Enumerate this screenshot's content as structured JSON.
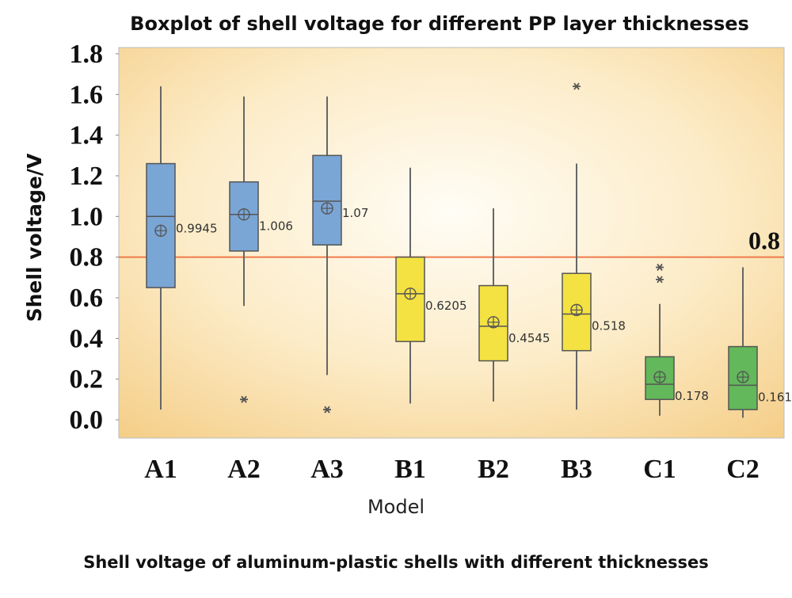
{
  "chart_data": {
    "type": "boxplot",
    "title": "Boxplot of shell voltage for different PP layer thicknesses",
    "xlabel": "Model",
    "ylabel": "Shell voltage/V",
    "caption": "Shell voltage of aluminum-plastic shells with different thicknesses",
    "ylim": [
      0,
      1.8
    ],
    "yticks": [
      "0.0",
      "0.2",
      "0.4",
      "0.6",
      "0.8",
      "1.0",
      "1.2",
      "1.4",
      "1.6",
      "1.8"
    ],
    "grid": false,
    "reference_line": {
      "value": 0.8,
      "label": "0.8",
      "color": "#f07a4a"
    },
    "categories": [
      "A1",
      "A2",
      "A3",
      "B1",
      "B2",
      "B3",
      "C1",
      "C2"
    ],
    "boxes": [
      {
        "name": "A1",
        "whisker_low": 0.05,
        "q1": 0.65,
        "median": 1.0,
        "q3": 1.26,
        "whisker_high": 1.64,
        "mean": 0.93,
        "label": "0.9945",
        "outliers": [],
        "color": "#7aa6d6"
      },
      {
        "name": "A2",
        "whisker_low": 0.56,
        "q1": 0.83,
        "median": 1.01,
        "q3": 1.17,
        "whisker_high": 1.59,
        "mean": 1.01,
        "label": "1.006",
        "outliers": [
          0.1
        ],
        "color": "#7aa6d6"
      },
      {
        "name": "A3",
        "whisker_low": 0.22,
        "q1": 0.86,
        "median": 1.075,
        "q3": 1.3,
        "whisker_high": 1.59,
        "mean": 1.04,
        "label": "1.07",
        "outliers": [
          0.05
        ],
        "color": "#7aa6d6"
      },
      {
        "name": "B1",
        "whisker_low": 0.08,
        "q1": 0.385,
        "median": 0.62,
        "q3": 0.8,
        "whisker_high": 1.24,
        "mean": 0.62,
        "label": "0.6205",
        "outliers": [],
        "color": "#f4e242"
      },
      {
        "name": "B2",
        "whisker_low": 0.09,
        "q1": 0.29,
        "median": 0.46,
        "q3": 0.66,
        "whisker_high": 1.04,
        "mean": 0.48,
        "label": "0.4545",
        "outliers": [],
        "color": "#f4e242"
      },
      {
        "name": "B3",
        "whisker_low": 0.05,
        "q1": 0.34,
        "median": 0.52,
        "q3": 0.72,
        "whisker_high": 1.26,
        "mean": 0.54,
        "label": "0.518",
        "outliers": [
          1.64
        ],
        "color": "#f4e242"
      },
      {
        "name": "C1",
        "whisker_low": 0.02,
        "q1": 0.1,
        "median": 0.175,
        "q3": 0.31,
        "whisker_high": 0.57,
        "mean": 0.21,
        "label": "0.178",
        "outliers": [
          0.75,
          0.69
        ],
        "color": "#62b85a"
      },
      {
        "name": "C2",
        "whisker_low": 0.01,
        "q1": 0.05,
        "median": 0.17,
        "q3": 0.36,
        "whisker_high": 0.75,
        "mean": 0.21,
        "label": "0.161",
        "outliers": [],
        "color": "#62b85a"
      }
    ]
  }
}
